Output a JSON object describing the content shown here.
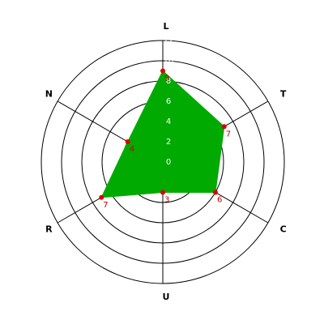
{
  "chart_data": {
    "type": "radar",
    "categories": [
      "L",
      "T",
      "C",
      "U",
      "R",
      "N"
    ],
    "values": [
      9,
      7,
      6,
      3,
      7,
      4
    ],
    "color": "#00aa00",
    "marker_color": "#dd0000",
    "ylim": [
      0,
      12
    ],
    "yticks": [
      0,
      2,
      4,
      6,
      8,
      10,
      12
    ],
    "grid": true
  }
}
